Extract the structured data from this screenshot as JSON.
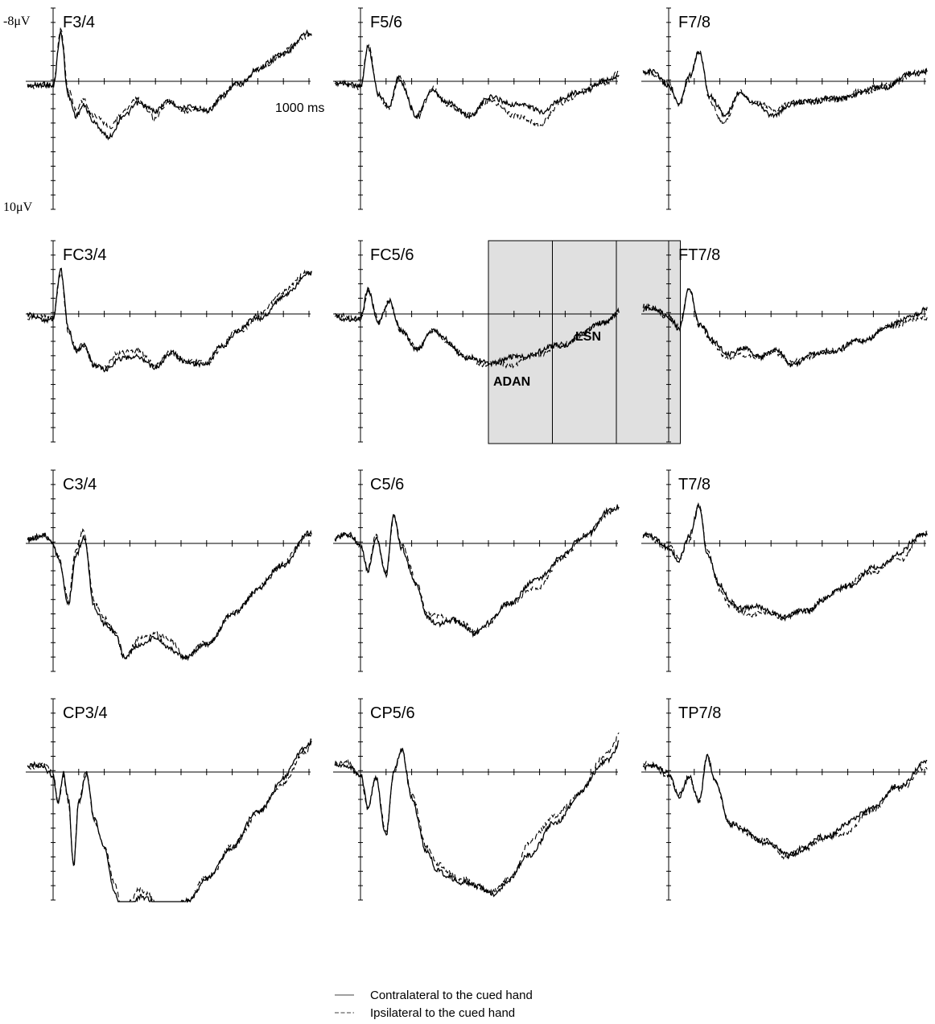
{
  "chart_data": {
    "type": "line",
    "scale_top": "-8μV",
    "scale_bottom": "10μV",
    "time_label": "1000 ms",
    "ylim": [
      -8,
      10
    ],
    "xlim": [
      -200,
      1200
    ],
    "legend": [
      {
        "label": "Contralateral to the cued hand",
        "style": "solid"
      },
      {
        "label": "Ipsilateral to the cued hand",
        "style": "dashed"
      }
    ],
    "annotations": [
      {
        "label": "ADAN",
        "panel": "FC5/6"
      },
      {
        "label": "LSN",
        "panel": "FC5/6"
      }
    ],
    "highlight_windows_ms": [
      [
        500,
        750
      ],
      [
        750,
        1000
      ],
      [
        1000,
        1250
      ]
    ],
    "panels": [
      {
        "label": "F3/4",
        "knots": [
          [
            -200,
            0
          ],
          [
            0,
            0.4
          ],
          [
            30,
            -3.5
          ],
          [
            60,
            1
          ],
          [
            90,
            2.5
          ],
          [
            120,
            1.8
          ],
          [
            160,
            2.8
          ],
          [
            220,
            3.9
          ],
          [
            280,
            2.4
          ],
          [
            330,
            1.4
          ],
          [
            400,
            2.2
          ],
          [
            450,
            1.3
          ],
          [
            520,
            1.9
          ],
          [
            600,
            2.0
          ],
          [
            660,
            1.1
          ],
          [
            720,
            0.2
          ],
          [
            800,
            -0.8
          ],
          [
            900,
            -2.0
          ],
          [
            1000,
            -3.3
          ],
          [
            1100,
            -4.9
          ],
          [
            1250,
            -7.8
          ]
        ],
        "diff": [
          [
            100,
            -0.4
          ],
          [
            240,
            -0.6
          ],
          [
            420,
            0.3
          ]
        ]
      },
      {
        "label": "F5/6",
        "knots": [
          [
            -200,
            0
          ],
          [
            0,
            0.3
          ],
          [
            30,
            -2.5
          ],
          [
            70,
            1.0
          ],
          [
            110,
            1.8
          ],
          [
            150,
            -0.3
          ],
          [
            220,
            2.5
          ],
          [
            280,
            0.6
          ],
          [
            340,
            1.5
          ],
          [
            420,
            2.4
          ],
          [
            500,
            1.2
          ],
          [
            600,
            1.5
          ],
          [
            700,
            2.1
          ],
          [
            780,
            1.3
          ],
          [
            860,
            0.7
          ],
          [
            950,
            0.1
          ],
          [
            1050,
            -1.0
          ],
          [
            1150,
            -2.1
          ],
          [
            1250,
            -6.3
          ]
        ],
        "diff": [
          [
            600,
            0.6
          ],
          [
            700,
            0.7
          ]
        ]
      },
      {
        "label": "F7/8",
        "knots": [
          [
            -200,
            0
          ],
          [
            -60,
            -0.6
          ],
          [
            0,
            0.2
          ],
          [
            40,
            1.7
          ],
          [
            80,
            -0.3
          ],
          [
            120,
            -2.2
          ],
          [
            160,
            1.0
          ],
          [
            220,
            2.5
          ],
          [
            280,
            0.6
          ],
          [
            330,
            1.5
          ],
          [
            400,
            2.3
          ],
          [
            480,
            1.7
          ],
          [
            560,
            1.3
          ],
          [
            650,
            1.3
          ],
          [
            750,
            0.8
          ],
          [
            850,
            0.3
          ],
          [
            950,
            -0.5
          ],
          [
            1050,
            -1.0
          ],
          [
            1150,
            -2.6
          ],
          [
            1250,
            -4.2
          ]
        ],
        "diff": [
          [
            200,
            0.4
          ],
          [
            400,
            -0.3
          ]
        ]
      },
      {
        "label": "FC3/4",
        "knots": [
          [
            -200,
            0
          ],
          [
            0,
            0.3
          ],
          [
            30,
            -3.0
          ],
          [
            60,
            1.2
          ],
          [
            90,
            2.5
          ],
          [
            120,
            2.1
          ],
          [
            160,
            3.6
          ],
          [
            200,
            4.0
          ],
          [
            260,
            3.0
          ],
          [
            330,
            3.1
          ],
          [
            400,
            3.6
          ],
          [
            460,
            2.8
          ],
          [
            520,
            3.3
          ],
          [
            600,
            3.5
          ],
          [
            660,
            2.2
          ],
          [
            720,
            1.2
          ],
          [
            800,
            0.3
          ],
          [
            900,
            -1.1
          ],
          [
            1000,
            -2.9
          ],
          [
            1100,
            -4.9
          ],
          [
            1250,
            -9.4
          ]
        ],
        "diff": [
          [
            300,
            -0.5
          ],
          [
            900,
            -0.4
          ]
        ]
      },
      {
        "label": "FC5/6",
        "knots": [
          [
            -200,
            0
          ],
          [
            0,
            0.3
          ],
          [
            30,
            -1.6
          ],
          [
            70,
            0.6
          ],
          [
            110,
            -1.0
          ],
          [
            160,
            1.3
          ],
          [
            220,
            2.4
          ],
          [
            280,
            1.2
          ],
          [
            330,
            1.8
          ],
          [
            420,
            3.1
          ],
          [
            480,
            3.4
          ],
          [
            560,
            3.2
          ],
          [
            620,
            3.0
          ],
          [
            700,
            2.6
          ],
          [
            780,
            2.2
          ],
          [
            860,
            1.5
          ],
          [
            950,
            0.5
          ],
          [
            1050,
            -0.5
          ],
          [
            1150,
            -2.0
          ],
          [
            1250,
            -4.7
          ]
        ],
        "diff": [
          [
            600,
            0.4
          ],
          [
            1100,
            0.6
          ]
        ]
      },
      {
        "label": "FT7/8",
        "knots": [
          [
            -200,
            0
          ],
          [
            -60,
            -0.5
          ],
          [
            0,
            0.3
          ],
          [
            40,
            1.0
          ],
          [
            80,
            -1.9
          ],
          [
            120,
            0.8
          ],
          [
            170,
            1.8
          ],
          [
            240,
            2.8
          ],
          [
            300,
            2.5
          ],
          [
            360,
            2.9
          ],
          [
            420,
            2.6
          ],
          [
            480,
            3.5
          ],
          [
            560,
            2.9
          ],
          [
            650,
            2.5
          ],
          [
            750,
            1.9
          ],
          [
            850,
            1.0
          ],
          [
            950,
            0.1
          ],
          [
            1050,
            -0.5
          ],
          [
            1150,
            -2.2
          ],
          [
            1250,
            -3.7
          ]
        ],
        "diff": [
          [
            250,
            0.4
          ],
          [
            1000,
            0.5
          ]
        ]
      },
      {
        "label": "C3/4",
        "knots": [
          [
            -200,
            0
          ],
          [
            -40,
            -0.5
          ],
          [
            0,
            0.1
          ],
          [
            20,
            1.0
          ],
          [
            60,
            4.1
          ],
          [
            90,
            0.9
          ],
          [
            120,
            -0.3
          ],
          [
            160,
            4.3
          ],
          [
            200,
            5.5
          ],
          [
            240,
            6.3
          ],
          [
            280,
            8.0
          ],
          [
            330,
            7.0
          ],
          [
            400,
            6.7
          ],
          [
            460,
            7.3
          ],
          [
            520,
            8.0
          ],
          [
            600,
            7.0
          ],
          [
            700,
            5.0
          ],
          [
            800,
            3.2
          ],
          [
            900,
            1.4
          ],
          [
            1000,
            -0.6
          ],
          [
            1100,
            -2.9
          ],
          [
            1150,
            -5.0
          ],
          [
            1250,
            -10.9
          ]
        ],
        "diff": [
          [
            120,
            -0.5
          ],
          [
            420,
            -0.5
          ]
        ]
      },
      {
        "label": "C5/6",
        "knots": [
          [
            -200,
            0
          ],
          [
            -40,
            -0.5
          ],
          [
            0,
            0.1
          ],
          [
            30,
            1.8
          ],
          [
            60,
            -0.4
          ],
          [
            100,
            2.2
          ],
          [
            130,
            -1.9
          ],
          [
            160,
            0.2
          ],
          [
            220,
            3.0
          ],
          [
            260,
            5.2
          ],
          [
            300,
            5.5
          ],
          [
            360,
            5.4
          ],
          [
            400,
            5.7
          ],
          [
            440,
            6.2
          ],
          [
            500,
            5.6
          ],
          [
            580,
            4.1
          ],
          [
            680,
            2.7
          ],
          [
            780,
            1.0
          ],
          [
            880,
            -0.6
          ],
          [
            980,
            -2.3
          ],
          [
            1080,
            -4.0
          ],
          [
            1150,
            -5.8
          ],
          [
            1250,
            -8.7
          ]
        ],
        "diff": [
          [
            260,
            -0.4
          ],
          [
            700,
            0.5
          ]
        ]
      },
      {
        "label": "T7/8",
        "knots": [
          [
            -200,
            0
          ],
          [
            -80,
            -0.5
          ],
          [
            0,
            0.2
          ],
          [
            40,
            1.2
          ],
          [
            80,
            -0.4
          ],
          [
            120,
            -2.7
          ],
          [
            150,
            0.6
          ],
          [
            200,
            3.0
          ],
          [
            240,
            4.1
          ],
          [
            280,
            4.4
          ],
          [
            340,
            4.5
          ],
          [
            400,
            4.8
          ],
          [
            460,
            5.1
          ],
          [
            540,
            4.7
          ],
          [
            600,
            3.9
          ],
          [
            700,
            2.9
          ],
          [
            800,
            1.8
          ],
          [
            900,
            0.7
          ],
          [
            1000,
            -0.8
          ],
          [
            1100,
            -2.5
          ],
          [
            1250,
            -5.5
          ]
        ],
        "diff": [
          [
            300,
            0.4
          ],
          [
            900,
            0.4
          ]
        ]
      },
      {
        "label": "CP3/4",
        "knots": [
          [
            -200,
            0
          ],
          [
            -40,
            -0.5
          ],
          [
            0,
            0.2
          ],
          [
            20,
            2.2
          ],
          [
            40,
            0.2
          ],
          [
            60,
            2.0
          ],
          [
            80,
            6.6
          ],
          [
            100,
            2.0
          ],
          [
            130,
            0.0
          ],
          [
            160,
            3.2
          ],
          [
            200,
            5.5
          ],
          [
            240,
            8.2
          ],
          [
            270,
            10.0
          ],
          [
            300,
            9.5
          ],
          [
            340,
            8.8
          ],
          [
            380,
            8.9
          ],
          [
            420,
            10.0
          ],
          [
            450,
            10.0
          ],
          [
            520,
            9.0
          ],
          [
            600,
            7.5
          ],
          [
            700,
            5.2
          ],
          [
            800,
            2.8
          ],
          [
            900,
            0.5
          ],
          [
            980,
            -1.7
          ],
          [
            1050,
            -3.5
          ],
          [
            1150,
            -6.5
          ],
          [
            1250,
            -10.3
          ]
        ],
        "diff": [
          [
            300,
            -0.6
          ],
          [
            950,
            0.4
          ]
        ]
      },
      {
        "label": "CP5/6",
        "knots": [
          [
            -200,
            0
          ],
          [
            -60,
            -0.6
          ],
          [
            0,
            0.2
          ],
          [
            30,
            2.5
          ],
          [
            60,
            0.4
          ],
          [
            100,
            4.3
          ],
          [
            130,
            0.0
          ],
          [
            160,
            -1.5
          ],
          [
            200,
            1.8
          ],
          [
            260,
            5.5
          ],
          [
            300,
            7.0
          ],
          [
            340,
            7.3
          ],
          [
            400,
            7.6
          ],
          [
            460,
            8.1
          ],
          [
            520,
            8.4
          ],
          [
            580,
            7.6
          ],
          [
            660,
            5.7
          ],
          [
            760,
            3.6
          ],
          [
            860,
            1.4
          ],
          [
            960,
            -0.9
          ],
          [
            1060,
            -3.2
          ],
          [
            1160,
            -5.7
          ],
          [
            1250,
            -7.7
          ]
        ],
        "diff": [
          [
            300,
            -0.5
          ],
          [
            700,
            -0.8
          ],
          [
            1000,
            -0.6
          ]
        ]
      },
      {
        "label": "TP7/8",
        "knots": [
          [
            -200,
            0
          ],
          [
            -60,
            -0.5
          ],
          [
            0,
            0.2
          ],
          [
            40,
            1.7
          ],
          [
            80,
            0.2
          ],
          [
            120,
            2.1
          ],
          [
            150,
            -1.0
          ],
          [
            180,
            0.5
          ],
          [
            240,
            3.6
          ],
          [
            300,
            4.2
          ],
          [
            380,
            4.9
          ],
          [
            460,
            5.8
          ],
          [
            520,
            5.4
          ],
          [
            600,
            4.6
          ],
          [
            700,
            3.6
          ],
          [
            800,
            2.4
          ],
          [
            900,
            1.0
          ],
          [
            1000,
            -0.6
          ],
          [
            1100,
            -2.1
          ],
          [
            1250,
            -4.4
          ]
        ],
        "diff": [
          [
            700,
            0.5
          ],
          [
            1000,
            0.4
          ]
        ]
      }
    ]
  }
}
